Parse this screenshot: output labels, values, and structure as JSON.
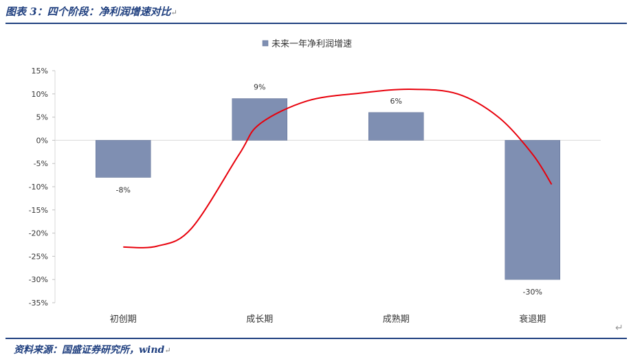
{
  "figure": {
    "title": "图表 3：四个阶段：净利润增速对比",
    "source": "资料来源：国盛证券研究所，wind",
    "return_mark": "↵"
  },
  "chart_data": {
    "type": "bar",
    "categories": [
      "初创期",
      "成长期",
      "成熟期",
      "衰退期"
    ],
    "series": [
      {
        "name": "未来一年净利润增速",
        "values": [
          -8,
          9,
          6,
          -30
        ],
        "data_labels": [
          "-8%",
          "9%",
          "6%",
          "-30%"
        ]
      }
    ],
    "y_ticks": [
      15,
      10,
      5,
      0,
      -5,
      -10,
      -15,
      -20,
      -25,
      -30,
      -35
    ],
    "y_tick_labels": [
      "15%",
      "10%",
      "5%",
      "0%",
      "-5%",
      "-10%",
      "-15%",
      "-20%",
      "-25%",
      "-30%",
      "-35%"
    ],
    "ylim": [
      -35,
      15
    ],
    "legend_position": "top-center",
    "grid": false,
    "bar_color": "#7f8fb2",
    "trend_curve": {
      "color": "#e8000b",
      "x": [
        0,
        0.25,
        0.5,
        0.85,
        1,
        1.35,
        1.75,
        2.1,
        2.45,
        2.75,
        3.0,
        3.14
      ],
      "y": [
        -23,
        -22.8,
        -19,
        -3,
        3.5,
        8.5,
        10.2,
        11,
        10,
        5,
        -3,
        -9.5
      ]
    }
  }
}
